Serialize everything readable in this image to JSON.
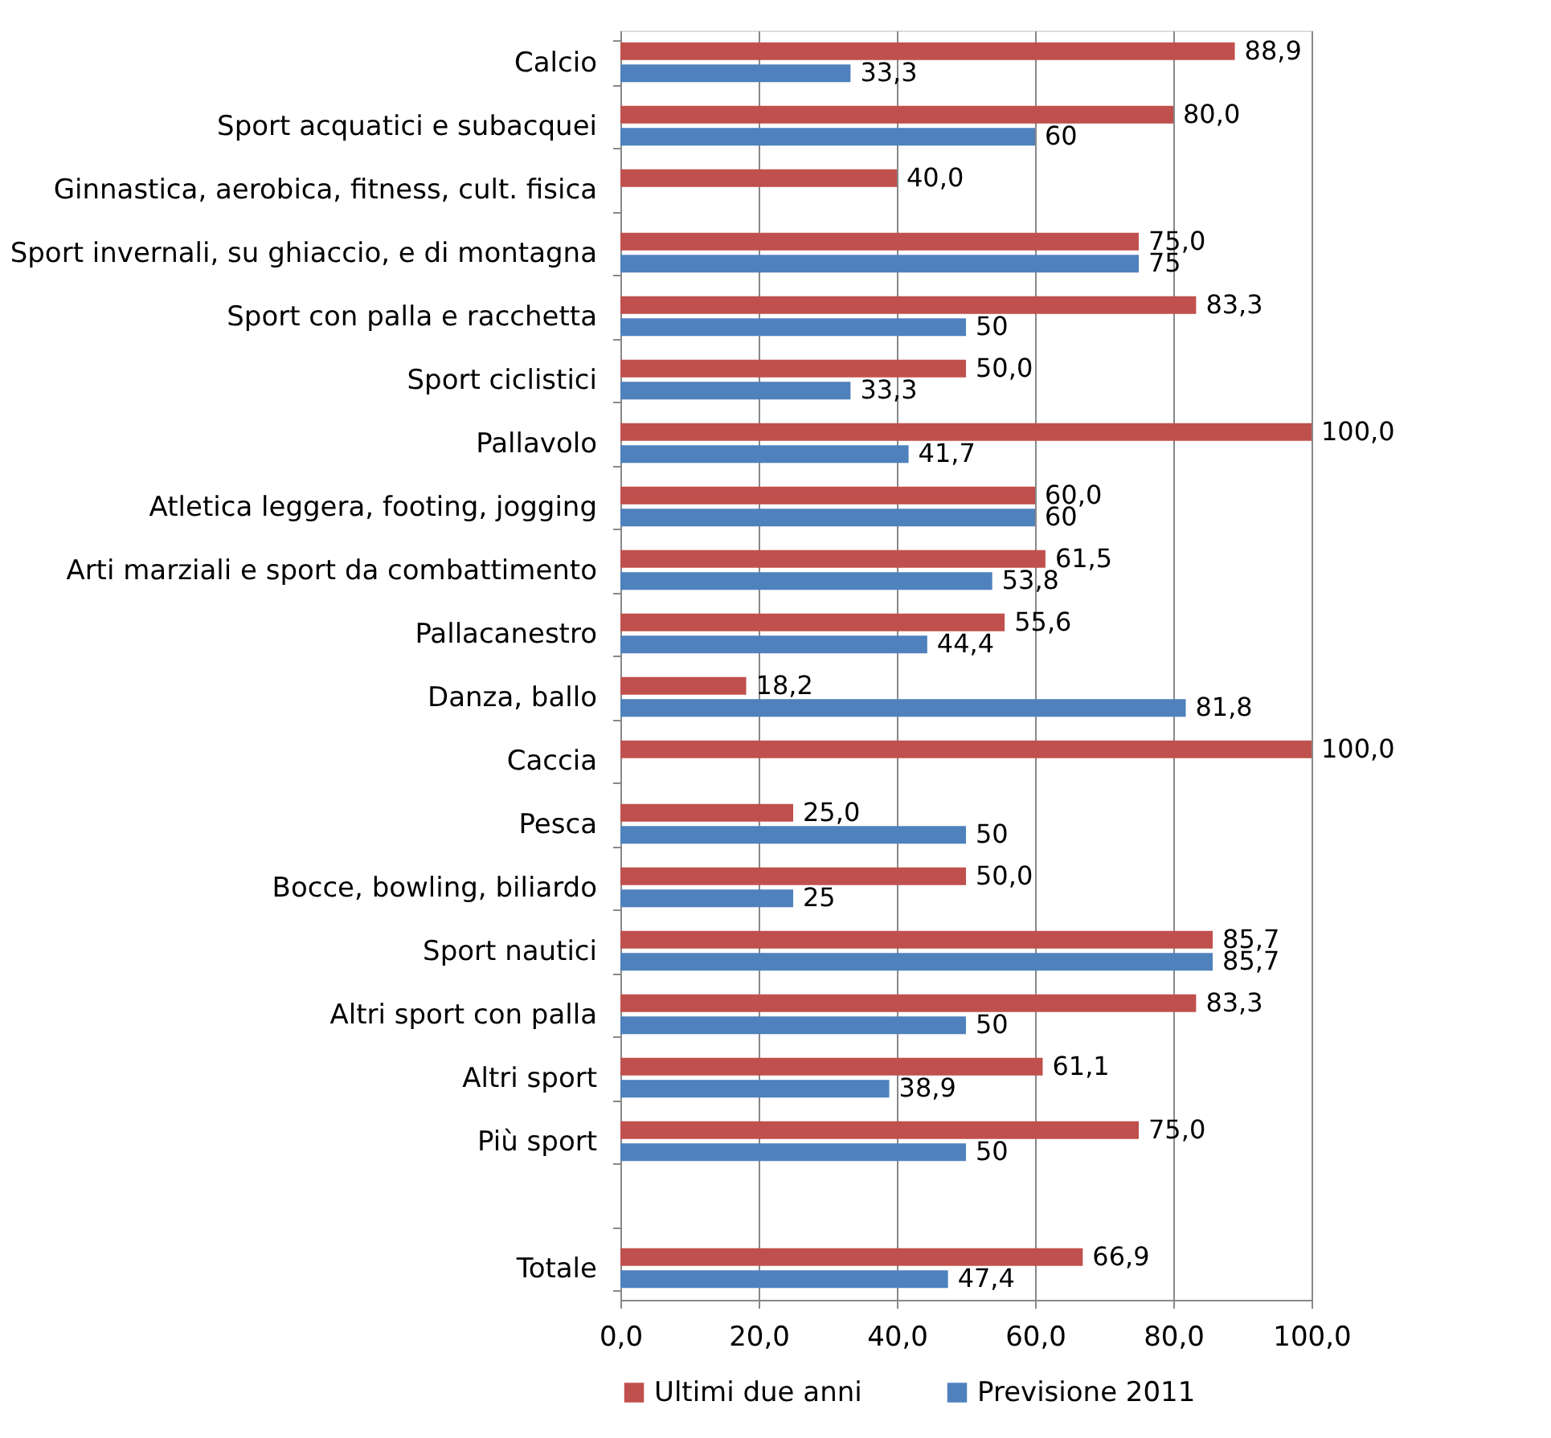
{
  "chart_data": {
    "type": "bar",
    "orientation": "horizontal",
    "categories": [
      "Calcio",
      "Sport acquatici e subacquei",
      "Ginnastica, aerobica, fitness, cult. fisica",
      "Sport invernali, su ghiaccio, e di montagna",
      "Sport con palla e racchetta",
      "Sport ciclistici",
      "Pallavolo",
      "Atletica leggera, footing, jogging",
      "Arti marziali e sport da combattimento",
      "Pallacanestro",
      "Danza, ballo",
      "Caccia",
      "Pesca",
      "Bocce, bowling, biliardo",
      "Sport nautici",
      "Altri sport con palla",
      "Altri sport",
      "Più sport",
      null,
      "Totale"
    ],
    "series": [
      {
        "name": "Ultimi due anni",
        "color": "#c0504d",
        "values": [
          88.9,
          80.0,
          40.0,
          75.0,
          83.3,
          50.0,
          100.0,
          60.0,
          61.5,
          55.6,
          18.2,
          100.0,
          25.0,
          50.0,
          85.7,
          83.3,
          61.1,
          75.0,
          null,
          66.9
        ],
        "value_labels": [
          "88,9",
          "80,0",
          "40,0",
          "75,0",
          "83,3",
          "50,0",
          "100,0",
          "60,0",
          "61,5",
          "55,6",
          "18,2",
          "100,0",
          "25,0",
          "50,0",
          "85,7",
          "83,3",
          "61,1",
          "75,0",
          null,
          "66,9"
        ]
      },
      {
        "name": "Previsione 2011",
        "color": "#4f81bd",
        "values": [
          33.3,
          60,
          null,
          75,
          50,
          33.3,
          41.7,
          60,
          53.8,
          44.4,
          81.8,
          null,
          50,
          25,
          85.7,
          50,
          38.9,
          50,
          null,
          47.4
        ],
        "value_labels": [
          "33,3",
          "60",
          null,
          "75",
          "50",
          "33,3",
          "41,7",
          "60",
          "53,8",
          "44,4",
          "81,8",
          null,
          "50",
          "25",
          "85,7",
          "50",
          "38,9",
          "50",
          null,
          "47,4"
        ]
      }
    ],
    "xlim": [
      0,
      100
    ],
    "xticks": [
      {
        "value": 0,
        "label": "0,0"
      },
      {
        "value": 20,
        "label": "20,0"
      },
      {
        "value": 40,
        "label": "40,0"
      },
      {
        "value": 60,
        "label": "60,0"
      },
      {
        "value": 80,
        "label": "80,0"
      },
      {
        "value": 100,
        "label": "100,0"
      }
    ],
    "grid": "x",
    "legend": "bottom"
  }
}
